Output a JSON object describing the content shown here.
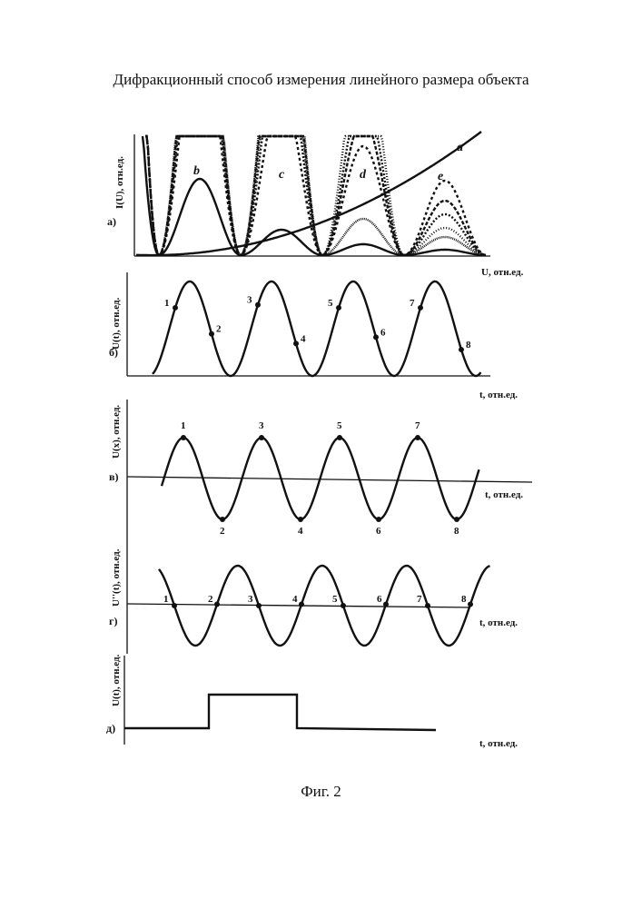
{
  "page": {
    "title": "Дифракционный способ измерения линейного размера объекта",
    "caption": "Фиг. 2"
  },
  "panels": {
    "a": {
      "label": "а)",
      "ylabel": "I(U), отн.ед.",
      "xlabel": "U, отн.ед.",
      "curves": [
        "a",
        "b",
        "c",
        "d",
        "e"
      ]
    },
    "b": {
      "label": "б)",
      "ylabel": "U(t), отн.ед.",
      "xlabel": "t, отн.ед.",
      "points": [
        "1",
        "2",
        "3",
        "4",
        "5",
        "6",
        "7",
        "8"
      ]
    },
    "v": {
      "label": "в)",
      "ylabel": "U(x), отн.ед.",
      "xlabel": "t, отн.ед.",
      "points": [
        "1",
        "2",
        "3",
        "4",
        "5",
        "6",
        "7",
        "8"
      ]
    },
    "g": {
      "label": "г)",
      "ylabel": "U''(t), отн.ед.",
      "xlabel": "t, отн.ед.",
      "points": [
        "1",
        "2",
        "3",
        "4",
        "5",
        "6",
        "7",
        "8"
      ]
    },
    "d": {
      "label": "д)",
      "ylabel": "U(t), отн.ед.",
      "xlabel": "t, отн.ед."
    }
  }
}
